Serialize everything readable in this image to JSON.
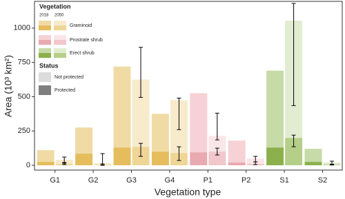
{
  "chart_data": {
    "type": "grouped-stacked-bar",
    "x_label": "Vegetation type",
    "y_label": "Area (10³ km²)",
    "ylim": [
      -35,
      1195
    ],
    "yticks": [
      0,
      250,
      500,
      750,
      1000
    ],
    "legend_title": "Vegetation",
    "years": [
      "2018",
      "2050"
    ],
    "status_title": "Status",
    "status": [
      {
        "name": "Not protected",
        "color": "#dcdcdc"
      },
      {
        "name": "Protected",
        "color": "#7f7f7f"
      }
    ],
    "groups": [
      {
        "name": "Graminoid",
        "categories": [
          "G1",
          "G2",
          "G3",
          "G4"
        ],
        "years": [
          {
            "color": "#f0dba5",
            "protected_color": "#e5bd5c",
            "protected": [
              25,
              85,
              130,
              100
            ],
            "not_protected": [
              85,
              190,
              590,
              275
            ]
          },
          {
            "color": "#f7ebcc",
            "protected_color": "#efd697",
            "protected": [
              10,
              5,
              135,
              90
            ],
            "not_protected": [
              30,
              10,
              490,
              385
            ],
            "total_err_low": [
              20,
              0,
              495,
              260
            ],
            "total_err_high": [
              60,
              85,
              860,
              490
            ],
            "protected_err_low": [
              5,
              2,
              65,
              35
            ],
            "protected_err_high": [
              15,
              10,
              160,
              135
            ]
          }
        ]
      },
      {
        "name": "Prostrate shrub",
        "categories": [
          "P1",
          "P2"
        ],
        "years": [
          {
            "color": "#f6d1d5",
            "protected_color": "#e9a9b1",
            "protected": [
              95,
              20
            ],
            "not_protected": [
              430,
              160
            ]
          },
          {
            "color": "#fae6e8",
            "protected_color": "#f2c7cc",
            "protected": [
              100,
              10
            ],
            "not_protected": [
              115,
              40
            ],
            "total_err_low": [
              185,
              25
            ],
            "total_err_high": [
              380,
              65
            ],
            "protected_err_low": [
              75,
              5
            ],
            "protected_err_high": [
              125,
              25
            ]
          }
        ]
      },
      {
        "name": "Erect shrub",
        "categories": [
          "S1",
          "S2"
        ],
        "years": [
          {
            "color": "#c6dba8",
            "protected_color": "#8cb04c",
            "protected": [
              130,
              25
            ],
            "not_protected": [
              560,
              95
            ]
          },
          {
            "color": "#e1ecd1",
            "protected_color": "#b6cf88",
            "protected": [
              200,
              5
            ],
            "not_protected": [
              855,
              15
            ],
            "total_err_low": [
              435,
              5
            ],
            "total_err_high": [
              1180,
              30
            ],
            "protected_err_low": [
              135,
              2
            ],
            "protected_err_high": [
              220,
              8
            ]
          }
        ]
      }
    ]
  }
}
